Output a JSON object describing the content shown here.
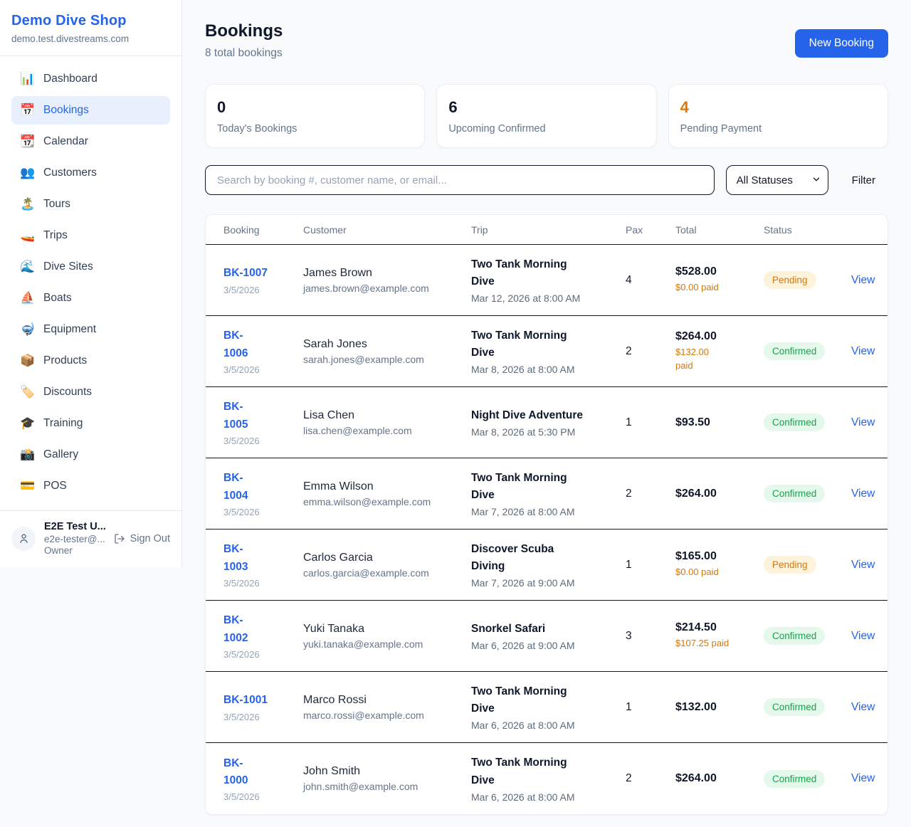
{
  "sidebar": {
    "brand": {
      "name": "Demo Dive Shop",
      "domain": "demo.test.divestreams.com"
    },
    "nav": [
      {
        "icon": "📊",
        "label": "Dashboard",
        "active": false
      },
      {
        "icon": "📅",
        "label": "Bookings",
        "active": true
      },
      {
        "icon": "📆",
        "label": "Calendar",
        "active": false
      },
      {
        "icon": "👥",
        "label": "Customers",
        "active": false
      },
      {
        "icon": "🏝️",
        "label": "Tours",
        "active": false
      },
      {
        "icon": "🚤",
        "label": "Trips",
        "active": false
      },
      {
        "icon": "🌊",
        "label": "Dive Sites",
        "active": false
      },
      {
        "icon": "⛵",
        "label": "Boats",
        "active": false
      },
      {
        "icon": "🤿",
        "label": "Equipment",
        "active": false
      },
      {
        "icon": "📦",
        "label": "Products",
        "active": false
      },
      {
        "icon": "🏷️",
        "label": "Discounts",
        "active": false
      },
      {
        "icon": "🎓",
        "label": "Training",
        "active": false
      },
      {
        "icon": "📸",
        "label": "Gallery",
        "active": false
      },
      {
        "icon": "💳",
        "label": "POS",
        "active": false
      }
    ],
    "user": {
      "name": "E2E Test U...",
      "email": "e2e-tester@...",
      "role": "Owner",
      "sign_out": "Sign Out"
    }
  },
  "header": {
    "title": "Bookings",
    "subtitle": "8 total bookings",
    "new_booking": "New Booking"
  },
  "stats": [
    {
      "value": "0",
      "label": "Today's Bookings",
      "color": "#0f172a"
    },
    {
      "value": "6",
      "label": "Upcoming Confirmed",
      "color": "#0f172a"
    },
    {
      "value": "4",
      "label": "Pending Payment",
      "color": "#d97706"
    }
  ],
  "filters": {
    "search_placeholder": "Search by booking #, customer name, or email...",
    "status_select": "All Statuses",
    "filter_label": "Filter"
  },
  "table": {
    "columns": [
      "Booking",
      "Customer",
      "Trip",
      "Pax",
      "Total",
      "Status",
      ""
    ],
    "rows": [
      {
        "id": "BK-1007",
        "date": "3/5/2026",
        "customer": "James Brown",
        "email": "james.brown@example.com",
        "trip": "Two Tank Morning\nDive",
        "trip_time": "Mar 12, 2026 at 8:00 AM",
        "pax": "4",
        "total": "$528.00",
        "paid": "$0.00 paid",
        "status": "Pending",
        "action": "View"
      },
      {
        "id": "BK-\n1006",
        "date": "3/5/2026",
        "customer": "Sarah Jones",
        "email": "sarah.jones@example.com",
        "trip": "Two Tank Morning\nDive",
        "trip_time": "Mar 8, 2026 at 8:00 AM",
        "pax": "2",
        "total": "$264.00",
        "paid": "$132.00\npaid",
        "status": "Confirmed",
        "action": "View"
      },
      {
        "id": "BK-\n1005",
        "date": "3/5/2026",
        "customer": "Lisa Chen",
        "email": "lisa.chen@example.com",
        "trip": "Night Dive Adventure",
        "trip_time": "Mar 8, 2026 at 5:30 PM",
        "pax": "1",
        "total": "$93.50",
        "paid": "",
        "status": "Confirmed",
        "action": "View"
      },
      {
        "id": "BK-\n1004",
        "date": "3/5/2026",
        "customer": "Emma Wilson",
        "email": "emma.wilson@example.com",
        "trip": "Two Tank Morning\nDive",
        "trip_time": "Mar 7, 2026 at 8:00 AM",
        "pax": "2",
        "total": "$264.00",
        "paid": "",
        "status": "Confirmed",
        "action": "View"
      },
      {
        "id": "BK-\n1003",
        "date": "3/5/2026",
        "customer": "Carlos Garcia",
        "email": "carlos.garcia@example.com",
        "trip": "Discover Scuba\nDiving",
        "trip_time": "Mar 7, 2026 at 9:00 AM",
        "pax": "1",
        "total": "$165.00",
        "paid": "$0.00 paid",
        "status": "Pending",
        "action": "View"
      },
      {
        "id": "BK-\n1002",
        "date": "3/5/2026",
        "customer": "Yuki Tanaka",
        "email": "yuki.tanaka@example.com",
        "trip": "Snorkel Safari",
        "trip_time": "Mar 6, 2026 at 9:00 AM",
        "pax": "3",
        "total": "$214.50",
        "paid": "$107.25 paid",
        "status": "Confirmed",
        "action": "View"
      },
      {
        "id": "BK-1001",
        "date": "3/5/2026",
        "customer": "Marco Rossi",
        "email": "marco.rossi@example.com",
        "trip": "Two Tank Morning\nDive",
        "trip_time": "Mar 6, 2026 at 8:00 AM",
        "pax": "1",
        "total": "$132.00",
        "paid": "",
        "status": "Confirmed",
        "action": "View"
      },
      {
        "id": "BK-\n1000",
        "date": "3/5/2026",
        "customer": "John Smith",
        "email": "john.smith@example.com",
        "trip": "Two Tank Morning\nDive",
        "trip_time": "Mar 6, 2026 at 8:00 AM",
        "pax": "2",
        "total": "$264.00",
        "paid": "",
        "status": "Confirmed",
        "action": "View"
      }
    ]
  },
  "colors": {
    "brand_blue": "#2563eb",
    "pending_text": "#d97706",
    "pending_bg": "#fdf3da",
    "confirmed_text": "#16a34a",
    "confirmed_bg": "#e4f8ec",
    "page_bg": "#f8fafc"
  }
}
